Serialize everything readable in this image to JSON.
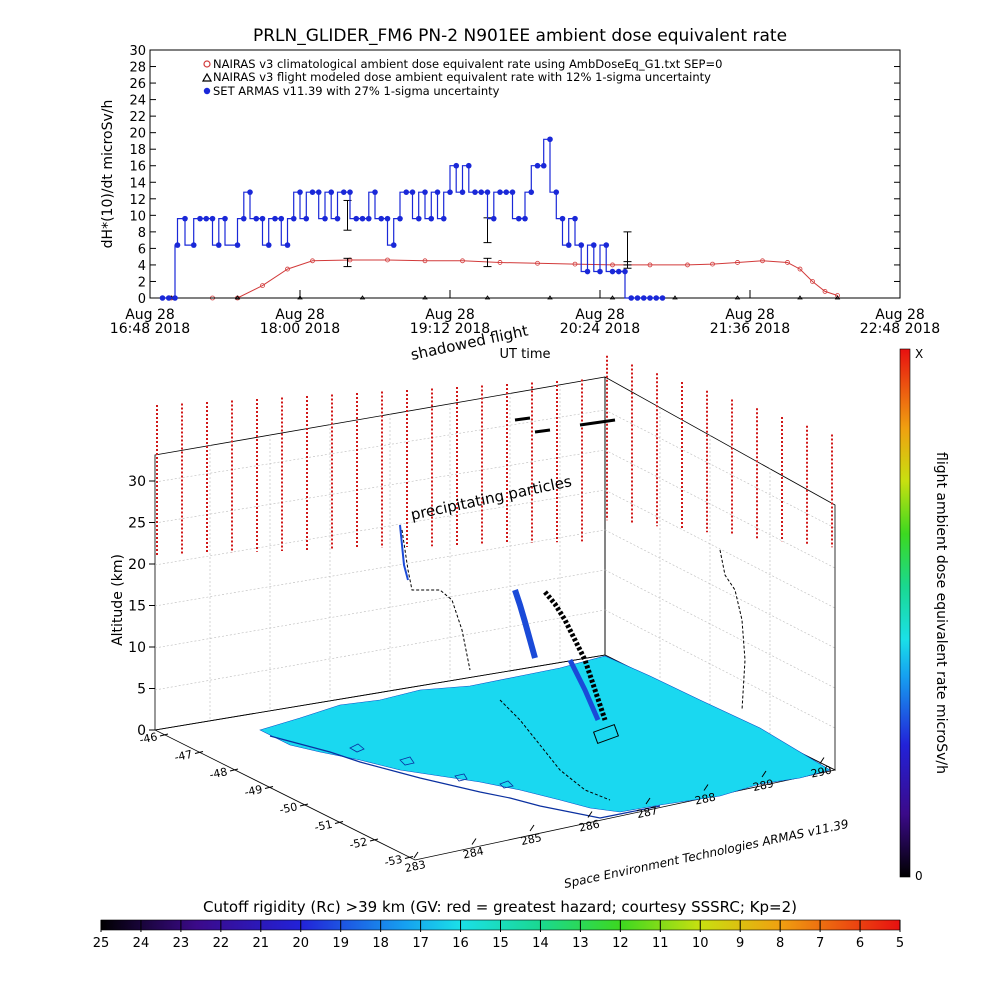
{
  "chart_data": [
    {
      "type": "line",
      "title": "PRLN_GLIDER_FM6 PN-2 N901EE ambient dose equivalent rate",
      "xlabel": "UT time",
      "ylabel": "dH*(10)/dt microSv/h",
      "ylim": [
        0,
        30
      ],
      "yticks": [
        "0",
        "2",
        "4",
        "6",
        "8",
        "10",
        "12",
        "14",
        "16",
        "18",
        "20",
        "22",
        "24",
        "26",
        "28",
        "30"
      ],
      "xticks": [
        {
          "day": "Aug 28",
          "time": "16:48 2018"
        },
        {
          "day": "Aug 28",
          "time": "18:00 2018"
        },
        {
          "day": "Aug 28",
          "time": "19:12 2018"
        },
        {
          "day": "Aug 28",
          "time": "20:24 2018"
        },
        {
          "day": "Aug 28",
          "time": "21:36 2018"
        },
        {
          "day": "Aug 28",
          "time": "22:48 2018"
        }
      ],
      "xlim_hours": [
        16.8,
        22.8
      ],
      "legend_position": "top-left",
      "series": [
        {
          "name": "NAIRAS v3 climatological ambient dose equivalent rate using AmbDoseEq_G1.txt SEP=0",
          "color": "#d23a3a",
          "x_hours": [
            16.97,
            17.3,
            17.5,
            17.7,
            17.9,
            18.1,
            18.4,
            18.7,
            19.0,
            19.3,
            19.6,
            19.9,
            20.2,
            20.5,
            20.8,
            21.1,
            21.3,
            21.5,
            21.7,
            21.9,
            22.0,
            22.1,
            22.2,
            22.3
          ],
          "values": [
            0.0,
            0.0,
            0.0,
            1.5,
            3.5,
            4.5,
            4.6,
            4.6,
            4.5,
            4.5,
            4.3,
            4.2,
            4.1,
            4.0,
            4.0,
            4.0,
            4.1,
            4.3,
            4.5,
            4.3,
            3.5,
            2.0,
            0.8,
            0.3
          ]
        },
        {
          "name": "NAIRAS v3 flight modeled dose ambient equivalent rate with 12% 1-sigma uncertainty",
          "color": "#000000",
          "x_hours": [
            16.97,
            17.5,
            18.0,
            18.5,
            19.0,
            19.5,
            20.0,
            20.5,
            21.0,
            21.5,
            22.0,
            22.3
          ],
          "values": [
            0,
            0,
            0,
            0,
            0,
            0,
            0,
            0,
            0,
            0,
            0,
            0
          ],
          "error_bars": [
            {
              "x_hours": 18.38,
              "value": 10.0,
              "err": 1.8
            },
            {
              "x_hours": 18.38,
              "value": 4.3,
              "err": 0.5
            },
            {
              "x_hours": 19.5,
              "value": 8.2,
              "err": 1.5
            },
            {
              "x_hours": 19.5,
              "value": 4.3,
              "err": 0.5
            },
            {
              "x_hours": 20.62,
              "value": 6.0,
              "err": 2.0
            },
            {
              "x_hours": 20.62,
              "value": 4.0,
              "err": 0.4
            }
          ]
        },
        {
          "name": "SET ARMAS v11.39 with 27% 1-sigma uncertainty",
          "color": "#1a28d8",
          "x_hours": [
            16.9,
            16.95,
            17.0,
            17.02,
            17.08,
            17.15,
            17.2,
            17.25,
            17.3,
            17.35,
            17.4,
            17.5,
            17.55,
            17.6,
            17.65,
            17.7,
            17.75,
            17.8,
            17.85,
            17.9,
            17.95,
            18.0,
            18.05,
            18.1,
            18.15,
            18.2,
            18.25,
            18.3,
            18.35,
            18.4,
            18.45,
            18.5,
            18.55,
            18.6,
            18.65,
            18.7,
            18.75,
            18.8,
            18.85,
            18.9,
            18.95,
            19.0,
            19.05,
            19.1,
            19.15,
            19.2,
            19.25,
            19.3,
            19.35,
            19.4,
            19.45,
            19.5,
            19.55,
            19.6,
            19.65,
            19.7,
            19.75,
            19.8,
            19.85,
            19.9,
            19.95,
            20.0,
            20.05,
            20.1,
            20.15,
            20.2,
            20.25,
            20.3,
            20.35,
            20.4,
            20.45,
            20.5,
            20.55,
            20.6,
            20.65,
            20.7,
            20.75,
            20.8,
            20.85,
            20.9
          ],
          "values": [
            0,
            0,
            0,
            6.4,
            9.6,
            6.4,
            9.6,
            9.6,
            9.6,
            6.4,
            9.6,
            6.4,
            9.6,
            12.8,
            9.6,
            9.6,
            6.4,
            9.6,
            9.6,
            6.4,
            9.6,
            12.8,
            9.6,
            12.8,
            12.8,
            9.6,
            12.8,
            9.6,
            12.8,
            12.8,
            9.6,
            9.6,
            9.6,
            12.8,
            9.6,
            9.6,
            6.4,
            9.6,
            12.8,
            12.8,
            9.6,
            12.8,
            9.6,
            12.8,
            9.6,
            12.8,
            16.0,
            12.8,
            16.0,
            12.8,
            12.8,
            12.8,
            9.6,
            12.8,
            12.8,
            12.8,
            9.6,
            9.6,
            12.8,
            16.0,
            16.0,
            19.2,
            12.8,
            9.6,
            6.4,
            9.6,
            6.4,
            3.2,
            6.4,
            3.2,
            6.4,
            3.2,
            3.2,
            3.2,
            0,
            0,
            0,
            0,
            0,
            0
          ]
        }
      ]
    },
    {
      "type": "scatter",
      "title": "",
      "zlabel": "Altitude (km)",
      "zticks": [
        "0",
        "5",
        "10",
        "15",
        "20",
        "25",
        "30"
      ],
      "lat_ticks": [
        "-46",
        "-47",
        "-48",
        "-49",
        "-50",
        "-51",
        "-52",
        "-53"
      ],
      "lon_ticks": [
        "283",
        "284",
        "285",
        "286",
        "287",
        "288",
        "289",
        "290"
      ],
      "annotations": [
        "shadowed flight",
        "precipitating particles"
      ],
      "credit": "Space Environment Technologies ARMAS v11.39",
      "colorbar": {
        "label": "flight ambient dose equivalent rate microSv/h",
        "top_label": "X",
        "bottom_label": "0"
      }
    }
  ],
  "rigidity_bar": {
    "title": "Cutoff rigidity (Rc) >39 km (GV: red = greatest hazard; courtesy SSSRC; Kp=2)",
    "ticks": [
      "25",
      "24",
      "23",
      "22",
      "21",
      "20",
      "19",
      "18",
      "17",
      "16",
      "15",
      "14",
      "13",
      "12",
      "11",
      "10",
      "9",
      "8",
      "7",
      "6",
      "5"
    ]
  }
}
